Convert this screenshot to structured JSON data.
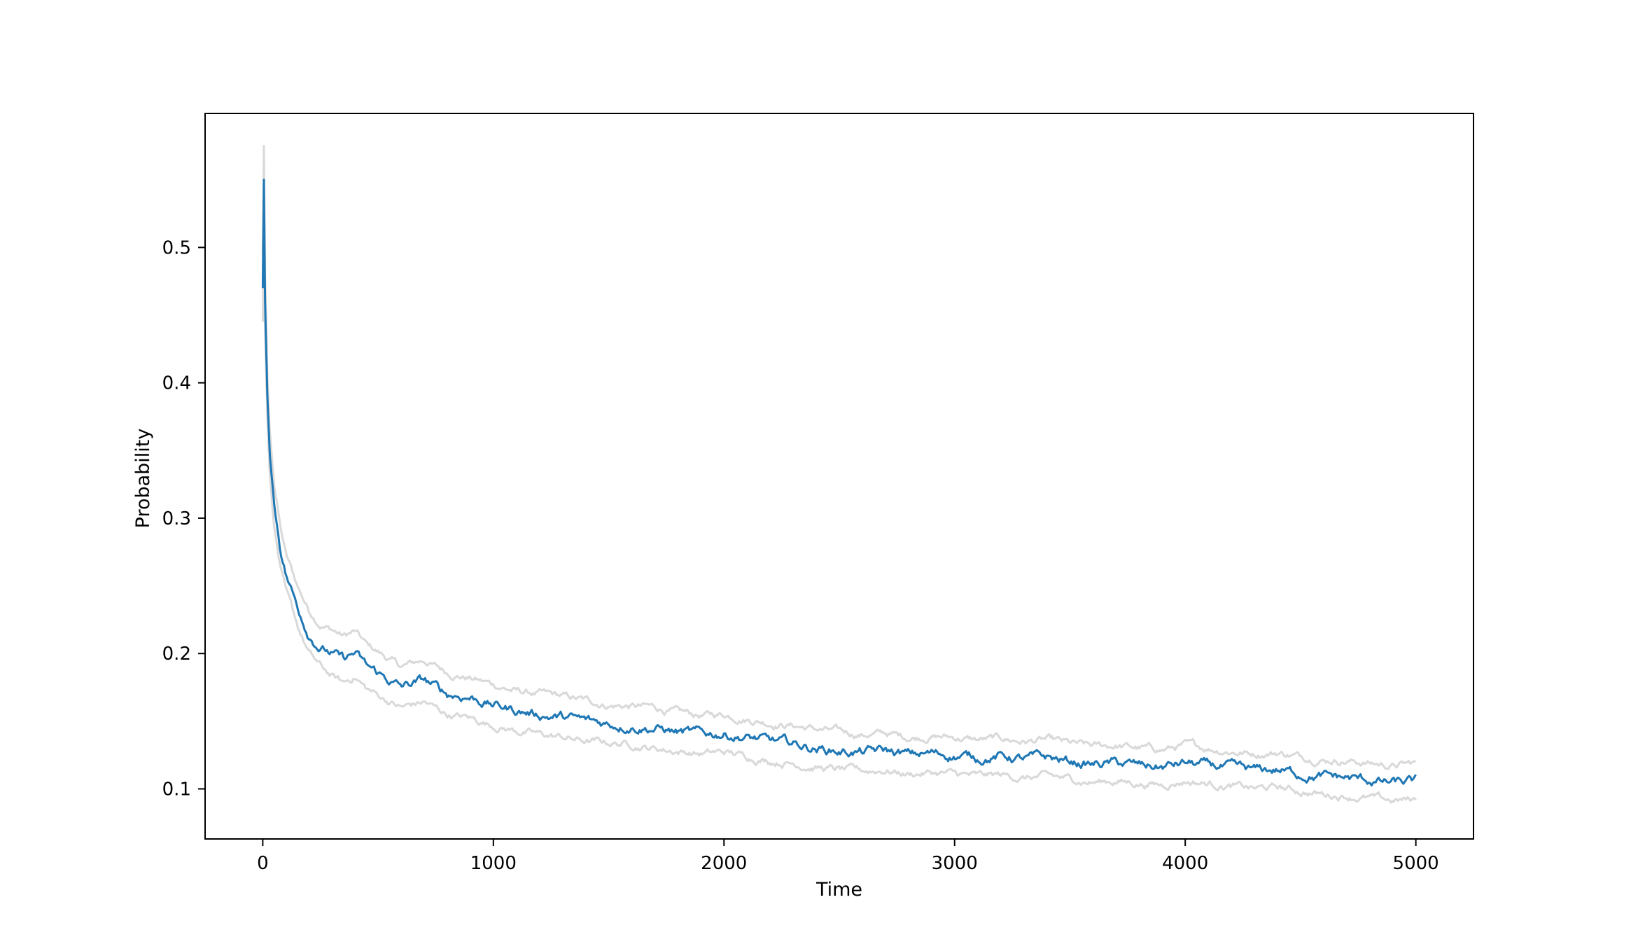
{
  "chart_data": {
    "type": "line",
    "title": "",
    "xlabel": "Time",
    "ylabel": "Probability",
    "xlim": [
      -250,
      5250
    ],
    "ylim": [
      0.063,
      0.599
    ],
    "grid": false,
    "legend": "none",
    "xticks": [
      0,
      1000,
      2000,
      3000,
      4000,
      5000
    ],
    "xtick_labels": [
      "0",
      "1000",
      "2000",
      "3000",
      "4000",
      "5000"
    ],
    "yticks": [
      0.1,
      0.2,
      0.3,
      0.4,
      0.5
    ],
    "ytick_labels": [
      "0.1",
      "0.2",
      "0.3",
      "0.4",
      "0.5"
    ],
    "colors": {
      "mean": "#1f77b4",
      "band": "#d9d9d9",
      "axes": "#000000"
    },
    "series": [
      {
        "role": "mean",
        "x": [
          0,
          5,
          10,
          20,
          30,
          50,
          75,
          100,
          150,
          200,
          250,
          300,
          350,
          400,
          450,
          500,
          600,
          700,
          800,
          900,
          1000,
          1100,
          1200,
          1300,
          1400,
          1500,
          1600,
          1700,
          1800,
          1900,
          2000,
          2100,
          2200,
          2300,
          2400,
          2500,
          2600,
          2700,
          2800,
          2900,
          3000,
          3100,
          3200,
          3300,
          3400,
          3500,
          3600,
          3700,
          3800,
          3900,
          4000,
          4100,
          4200,
          4300,
          4400,
          4500,
          4600,
          4700,
          4800,
          4900,
          5000
        ],
        "y": [
          0.47,
          0.55,
          0.46,
          0.39,
          0.35,
          0.31,
          0.28,
          0.26,
          0.235,
          0.215,
          0.205,
          0.2,
          0.195,
          0.2,
          0.19,
          0.185,
          0.175,
          0.18,
          0.17,
          0.168,
          0.162,
          0.158,
          0.155,
          0.153,
          0.15,
          0.148,
          0.147,
          0.145,
          0.142,
          0.14,
          0.141,
          0.138,
          0.135,
          0.133,
          0.13,
          0.128,
          0.127,
          0.128,
          0.125,
          0.126,
          0.125,
          0.123,
          0.124,
          0.122,
          0.123,
          0.12,
          0.118,
          0.119,
          0.117,
          0.116,
          0.119,
          0.117,
          0.115,
          0.113,
          0.114,
          0.111,
          0.109,
          0.108,
          0.106,
          0.104,
          0.105
        ]
      },
      {
        "role": "upper-band",
        "x": [
          0,
          5,
          10,
          20,
          30,
          50,
          75,
          100,
          150,
          200,
          250,
          300,
          350,
          400,
          450,
          500,
          600,
          700,
          800,
          900,
          1000,
          1100,
          1200,
          1300,
          1400,
          1500,
          1600,
          1700,
          1800,
          1900,
          2000,
          2100,
          2200,
          2300,
          2400,
          2500,
          2600,
          2700,
          2800,
          2900,
          3000,
          3100,
          3200,
          3300,
          3400,
          3500,
          3600,
          3700,
          3800,
          3900,
          4000,
          4100,
          4200,
          4300,
          4400,
          4500,
          4600,
          4700,
          4800,
          4900,
          5000
        ],
        "y": [
          0.495,
          0.575,
          0.48,
          0.405,
          0.365,
          0.325,
          0.295,
          0.273,
          0.25,
          0.232,
          0.222,
          0.218,
          0.213,
          0.216,
          0.206,
          0.201,
          0.19,
          0.195,
          0.186,
          0.182,
          0.177,
          0.172,
          0.17,
          0.168,
          0.165,
          0.162,
          0.161,
          0.16,
          0.156,
          0.154,
          0.155,
          0.152,
          0.149,
          0.147,
          0.144,
          0.142,
          0.14,
          0.141,
          0.138,
          0.139,
          0.138,
          0.136,
          0.137,
          0.135,
          0.136,
          0.133,
          0.131,
          0.132,
          0.13,
          0.129,
          0.132,
          0.13,
          0.128,
          0.126,
          0.127,
          0.124,
          0.122,
          0.121,
          0.119,
          0.117,
          0.119
        ]
      },
      {
        "role": "lower-band",
        "x": [
          0,
          5,
          10,
          20,
          30,
          50,
          75,
          100,
          150,
          200,
          250,
          300,
          350,
          400,
          450,
          500,
          600,
          700,
          800,
          900,
          1000,
          1100,
          1200,
          1300,
          1400,
          1500,
          1600,
          1700,
          1800,
          1900,
          2000,
          2100,
          2200,
          2300,
          2400,
          2500,
          2600,
          2700,
          2800,
          2900,
          3000,
          3100,
          3200,
          3300,
          3400,
          3500,
          3600,
          3700,
          3800,
          3900,
          4000,
          4100,
          4200,
          4300,
          4400,
          4500,
          4600,
          4700,
          4800,
          4900,
          5000
        ],
        "y": [
          0.445,
          0.52,
          0.44,
          0.375,
          0.335,
          0.295,
          0.265,
          0.245,
          0.22,
          0.2,
          0.19,
          0.183,
          0.178,
          0.183,
          0.174,
          0.169,
          0.16,
          0.164,
          0.155,
          0.152,
          0.147,
          0.143,
          0.14,
          0.138,
          0.135,
          0.134,
          0.133,
          0.13,
          0.128,
          0.126,
          0.127,
          0.124,
          0.121,
          0.119,
          0.116,
          0.114,
          0.113,
          0.114,
          0.111,
          0.112,
          0.111,
          0.109,
          0.11,
          0.108,
          0.109,
          0.107,
          0.105,
          0.106,
          0.104,
          0.103,
          0.106,
          0.104,
          0.102,
          0.1,
          0.101,
          0.098,
          0.096,
          0.095,
          0.093,
          0.091,
          0.092
        ]
      }
    ]
  }
}
